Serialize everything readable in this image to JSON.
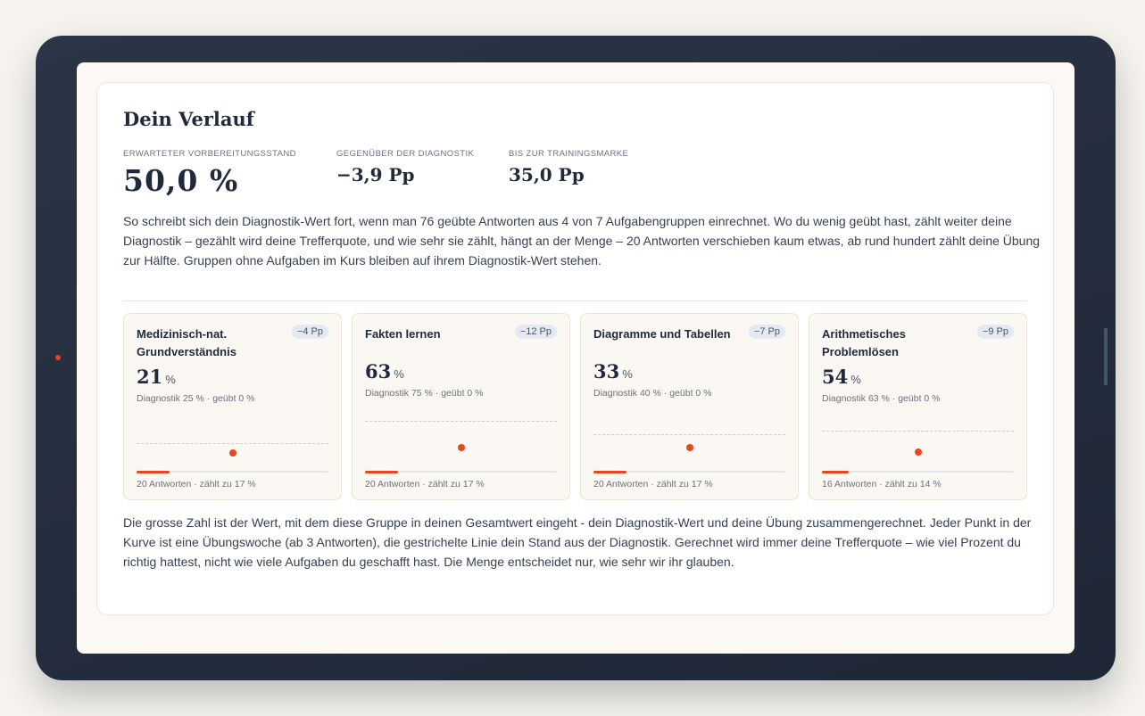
{
  "panel": {
    "title": "Dein Verlauf",
    "stats": [
      {
        "label": "ERWARTETER VORBEREITUNGSSTAND",
        "value": "50,0 %"
      },
      {
        "label": "GEGENÜBER DER DIAGNOSTIK",
        "value": "−3,9 Pp"
      },
      {
        "label": "BIS ZUR TRAININGSMARKE",
        "value": "35,0 Pp"
      }
    ],
    "intro": "So schreibt sich dein Diagnostik-Wert fort, wenn man 76 geübte Antworten aus 4 von 7 Aufgabengruppen einrechnet. Wo du wenig geübt hast, zählt weiter deine Diagnostik – gezählt wird deine Trefferquote, und wie sehr sie zählt, hängt an der Menge – 20 Antworten verschieben kaum etwas, ab rund hundert zählt deine Übung zur Hälfte. Gruppen ohne Aufgaben im Kurs bleiben auf ihrem Diagnostik-Wert stehen.",
    "outro": "Die grosse Zahl ist der Wert, mit dem diese Gruppe in deinen Gesamtwert eingeht - dein Diagnostik-Wert und deine Übung zusammengerechnet. Jeder Punkt in der Kurve ist eine Übungswoche (ab 3 Antworten), die gestrichelte Linie dein Stand aus der Diagnostik. Gerechnet wird immer deine Trefferquote – wie viel Prozent du richtig hattest, nicht wie viele Aufgaben du geschafft hast. Die Menge entscheidet nur, wie sehr wir ihr glauben."
  },
  "groups": [
    {
      "name": "Medizinisch-nat. Grundverständnis",
      "badge": "−4 Pp",
      "value": "21",
      "unit": "%",
      "sub": "Diagnostik 25 % · geübt 0 %",
      "foot": "20 Antworten · zählt zu 17 %",
      "weight": 0.17
    },
    {
      "name": "Fakten lernen",
      "badge": "−12 Pp",
      "value": "63",
      "unit": "%",
      "sub": "Diagnostik 75 % · geübt 0 %",
      "foot": "20 Antworten · zählt zu 17 %",
      "weight": 0.17
    },
    {
      "name": "Diagramme und Tabellen",
      "badge": "−7 Pp",
      "value": "33",
      "unit": "%",
      "sub": "Diagnostik 40 % · geübt 0 %",
      "foot": "20 Antworten · zählt zu 17 %",
      "weight": 0.17
    },
    {
      "name": "Arithmetisches Problemlösen",
      "badge": "−9 Pp",
      "value": "54",
      "unit": "%",
      "sub": "Diagnostik 63 % · geübt 0 %",
      "foot": "16 Antworten · zählt zu 14 %",
      "weight": 0.14
    }
  ],
  "colors": {
    "accent": "#e8461c",
    "frame": "#252e3e",
    "badge_bg": "#e6e9f2"
  }
}
